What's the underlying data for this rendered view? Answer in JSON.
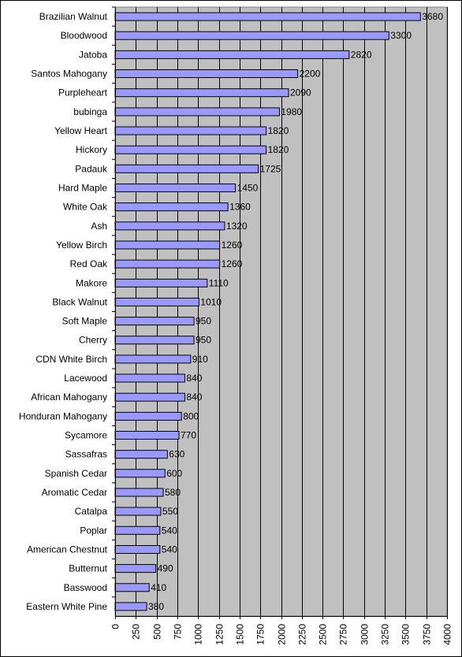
{
  "chart_data": {
    "type": "bar",
    "orientation": "horizontal",
    "title": "",
    "xlabel": "",
    "ylabel": "",
    "xlim": [
      0,
      4000
    ],
    "x_ticks": [
      "0",
      "250",
      "500",
      "750",
      "1000",
      "1250",
      "1500",
      "1750",
      "2000",
      "2250",
      "2500",
      "2750",
      "3000",
      "3250",
      "3500",
      "3750",
      "4000"
    ],
    "grid": "vertical",
    "legend": "none",
    "colors": {
      "bar_fill": "#9999ff",
      "plot_bg": "#c0c0c0",
      "grid": "#000000"
    },
    "categories": [
      "Brazilian Walnut",
      "Bloodwood",
      "Jatoba",
      "Santos Mahogany",
      "Purpleheart",
      "bubinga",
      "Yellow Heart",
      "Hickory",
      "Padauk",
      "Hard Maple",
      "White Oak",
      "Ash",
      "Yellow Birch",
      "Red Oak",
      "Makore",
      "Black Walnut",
      "Soft Maple",
      "Cherry",
      "CDN White Birch",
      "Lacewood",
      "African Mahogany",
      "Honduran Mahogany",
      "Sycamore",
      "Sassafras",
      "Spanish Cedar",
      "Aromatic Cedar",
      "Catalpa",
      "Poplar",
      "American Chestnut",
      "Butternut",
      "Basswood",
      "Eastern White Pine"
    ],
    "values": [
      3680,
      3300,
      2820,
      2200,
      2090,
      1980,
      1820,
      1820,
      1725,
      1450,
      1360,
      1320,
      1260,
      1260,
      1110,
      1010,
      950,
      950,
      910,
      840,
      840,
      800,
      770,
      630,
      600,
      580,
      550,
      540,
      540,
      490,
      410,
      380
    ],
    "value_labels": [
      "3680",
      "3300",
      "2820",
      "2200",
      "2090",
      "1980",
      "1820",
      "1820",
      "1725",
      "1450",
      "1360",
      "1320",
      "1260",
      "1260",
      "1110",
      "1010",
      "950",
      "950",
      "910",
      "840",
      "840",
      "800",
      "770",
      "630",
      "600",
      "580",
      "550",
      "540",
      "540",
      "490",
      "410",
      "380"
    ]
  }
}
